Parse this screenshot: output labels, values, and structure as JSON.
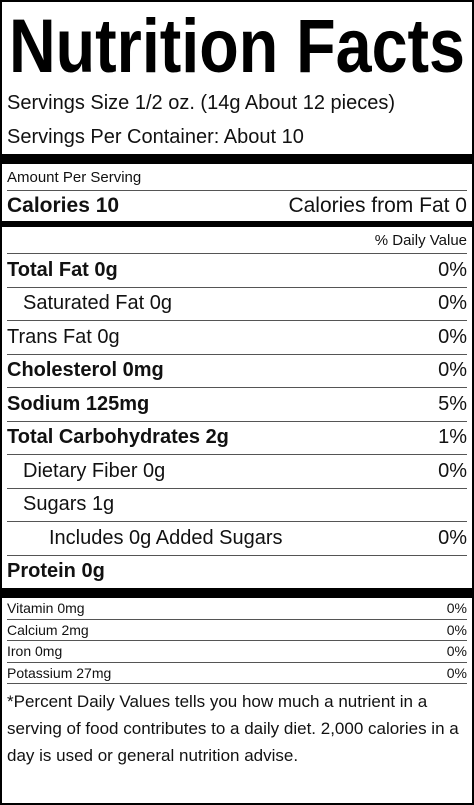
{
  "header": {
    "title": "Nutrition Facts",
    "serving_size": "Servings Size 1/2 oz.  (14g About 12 pieces)",
    "servings_per_container": "Servings Per Container:  About 10"
  },
  "amount_per_serving": "Amount Per Serving",
  "calories": {
    "label": "Calories",
    "value": "10",
    "from_fat": "Calories from Fat 0"
  },
  "daily_value_header": "% Daily Value",
  "nutrients": [
    {
      "name": "Total Fat",
      "amount": "0g",
      "dv": "0%"
    },
    {
      "name": "Saturated Fat",
      "amount": "0g",
      "dv": "0%"
    },
    {
      "name": "Trans Fat",
      "amount": "0g",
      "dv": "0%"
    },
    {
      "name": "Cholesterol",
      "amount": "0mg",
      "dv": "0%"
    },
    {
      "name": "Sodium",
      "amount": "125mg",
      "dv": "5%"
    },
    {
      "name": "Total Carbohydrates",
      "amount": "2g",
      "dv": "1%"
    },
    {
      "name": "Dietary Fiber",
      "amount": "0g",
      "dv": "0%"
    },
    {
      "name": "Sugars",
      "amount": "1g"
    },
    {
      "name": "Includes 0g Added Sugars",
      "dv": "0%"
    },
    {
      "name": "Protein",
      "amount": "0g"
    }
  ],
  "vitamins": [
    {
      "name": "Vitamin 0mg",
      "dv": "0%"
    },
    {
      "name": "Calcium 2mg",
      "dv": "0%"
    },
    {
      "name": "Iron 0mg",
      "dv": "0%"
    },
    {
      "name": "Potassium 27mg",
      "dv": "0%"
    }
  ],
  "footnote": "*Percent Daily Values tells you how much a nutrient in a serving of food contributes to a daily diet. 2,000 calories in a day is used or general nutrition advise."
}
